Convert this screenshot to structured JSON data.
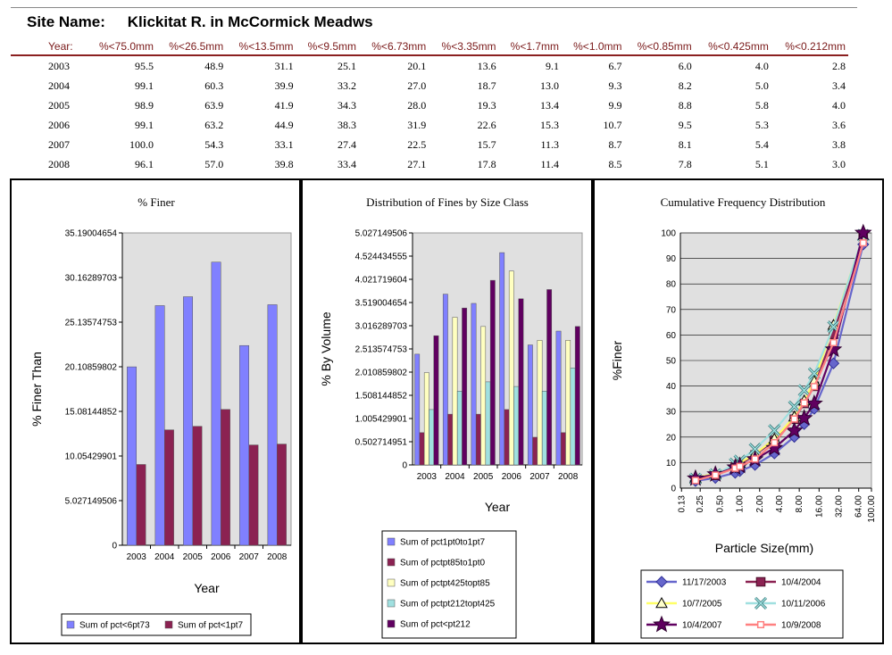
{
  "header": {
    "label": "Site Name:",
    "site": "Klickitat R. in McCormick Meadws"
  },
  "table": {
    "columns": [
      "Year:",
      "%<75.0mm",
      "%<26.5mm",
      "%<13.5mm",
      "%<9.5mm",
      "%<6.73mm",
      "%<3.35mm",
      "%<1.7mm",
      "%<1.0mm",
      "%<0.85mm",
      "%<0.425mm",
      "%<0.212mm"
    ],
    "rows": [
      [
        "2003",
        "95.5",
        "48.9",
        "31.1",
        "25.1",
        "20.1",
        "13.6",
        "9.1",
        "6.7",
        "6.0",
        "4.0",
        "2.8"
      ],
      [
        "2004",
        "99.1",
        "60.3",
        "39.9",
        "33.2",
        "27.0",
        "18.7",
        "13.0",
        "9.3",
        "8.2",
        "5.0",
        "3.4"
      ],
      [
        "2005",
        "98.9",
        "63.9",
        "41.9",
        "34.3",
        "28.0",
        "19.3",
        "13.4",
        "9.9",
        "8.8",
        "5.8",
        "4.0"
      ],
      [
        "2006",
        "99.1",
        "63.2",
        "44.9",
        "38.3",
        "31.9",
        "22.6",
        "15.3",
        "10.7",
        "9.5",
        "5.3",
        "3.6"
      ],
      [
        "2007",
        "100.0",
        "54.3",
        "33.1",
        "27.4",
        "22.5",
        "15.7",
        "11.3",
        "8.7",
        "8.1",
        "5.4",
        "3.8"
      ],
      [
        "2008",
        "96.1",
        "57.0",
        "39.8",
        "33.4",
        "27.1",
        "17.8",
        "11.4",
        "8.5",
        "7.8",
        "5.1",
        "3.0"
      ]
    ]
  },
  "chart_data": [
    {
      "type": "bar",
      "title": "% Finer",
      "xlabel": "Year",
      "ylabel": "% Finer Than",
      "categories": [
        "2003",
        "2004",
        "2005",
        "2006",
        "2007",
        "2008"
      ],
      "yticks": [
        "0",
        "5.027149506",
        "10.05429901",
        "15.08144852",
        "20.10859802",
        "25.13574753",
        "30.16289703",
        "35.19004654"
      ],
      "ylim": [
        0,
        35.19004654
      ],
      "grid": false,
      "legend_position": "bottom",
      "series": [
        {
          "name": "Sum of pct<6pt73",
          "color": "#8080ff",
          "values": [
            20.1,
            27.0,
            28.0,
            31.9,
            22.5,
            27.1
          ]
        },
        {
          "name": "Sum of pct<1pt7",
          "color": "#8b2252",
          "values": [
            9.1,
            13.0,
            13.4,
            15.3,
            11.3,
            11.4
          ]
        }
      ]
    },
    {
      "type": "bar",
      "title": "Distribution of Fines by Size Class",
      "xlabel": "Year",
      "ylabel": "% By Volume",
      "categories": [
        "2003",
        "2004",
        "2005",
        "2006",
        "2007",
        "2008"
      ],
      "yticks": [
        "0",
        "0.502714951",
        "1.005429901",
        "1.508144852",
        "2.010859802",
        "2.513574753",
        "3.016289703",
        "3.519004654",
        "4.021719604",
        "4.524434555",
        "5.027149506"
      ],
      "ylim": [
        0,
        5.027149506
      ],
      "grid": false,
      "legend_position": "bottom",
      "series": [
        {
          "name": "Sum of pct1pt0to1pt7",
          "color": "#8080ff",
          "values": [
            2.4,
            3.7,
            3.5,
            4.6,
            2.6,
            2.9
          ]
        },
        {
          "name": "Sum of pctpt85to1pt0",
          "color": "#8b2252",
          "values": [
            0.7,
            1.1,
            1.1,
            1.2,
            0.6,
            0.7
          ]
        },
        {
          "name": "Sum of pctpt425topt85",
          "color": "#ffffc0",
          "values": [
            2.0,
            3.2,
            3.0,
            4.2,
            2.7,
            2.7
          ]
        },
        {
          "name": "Sum of pctpt212topt425",
          "color": "#a0e0e0",
          "values": [
            1.2,
            1.6,
            1.8,
            1.7,
            1.6,
            2.1
          ]
        },
        {
          "name": "Sum of pct<pt212",
          "color": "#600060",
          "values": [
            2.8,
            3.4,
            4.0,
            3.6,
            3.8,
            3.0
          ]
        }
      ]
    },
    {
      "type": "line",
      "title": "Cumulative Frequency Distribution",
      "xlabel": "Particle Size(mm)",
      "ylabel": "%Finer",
      "x_scale": "log2",
      "x": [
        0.212,
        0.425,
        0.85,
        1.0,
        1.7,
        3.35,
        6.73,
        9.5,
        13.5,
        26.5,
        75.0
      ],
      "xticks": [
        "0.13",
        "0.25",
        "0.50",
        "1.00",
        "2.00",
        "4.00",
        "8.00",
        "16.00",
        "32.00",
        "64.00",
        "100.00"
      ],
      "yticks": [
        "0",
        "10",
        "20",
        "30",
        "40",
        "50",
        "60",
        "70",
        "80",
        "90",
        "100"
      ],
      "ylim": [
        0,
        100
      ],
      "grid": true,
      "legend_position": "bottom",
      "series": [
        {
          "name": "11/17/2003",
          "color": "#6666cc",
          "marker": "diamond",
          "values": [
            2.8,
            4.0,
            6.0,
            6.7,
            9.1,
            13.6,
            20.1,
            25.1,
            31.1,
            48.9,
            95.5
          ]
        },
        {
          "name": "10/4/2004",
          "color": "#8b2252",
          "marker": "square",
          "values": [
            3.4,
            5.0,
            8.2,
            9.3,
            13.0,
            18.7,
            27.0,
            33.2,
            39.9,
            60.3,
            99.1
          ]
        },
        {
          "name": "10/7/2005",
          "color": "#ffff66",
          "marker": "triangle",
          "values": [
            4.0,
            5.8,
            8.8,
            9.9,
            13.4,
            19.3,
            28.0,
            34.3,
            41.9,
            63.9,
            98.9
          ]
        },
        {
          "name": "10/11/2006",
          "color": "#a0e0e0",
          "marker": "x",
          "values": [
            3.6,
            5.3,
            9.5,
            10.7,
            15.3,
            22.6,
            31.9,
            38.3,
            44.9,
            63.2,
            99.1
          ]
        },
        {
          "name": "10/4/2007",
          "color": "#600060",
          "marker": "star",
          "values": [
            3.8,
            5.4,
            8.1,
            8.7,
            11.3,
            15.7,
            22.5,
            27.4,
            33.1,
            54.3,
            100.0
          ]
        },
        {
          "name": "10/9/2008",
          "color": "#ff8080",
          "marker": "square-open",
          "values": [
            3.0,
            5.1,
            7.8,
            8.5,
            11.4,
            17.8,
            27.1,
            33.4,
            39.8,
            57.0,
            96.1
          ]
        }
      ]
    }
  ]
}
